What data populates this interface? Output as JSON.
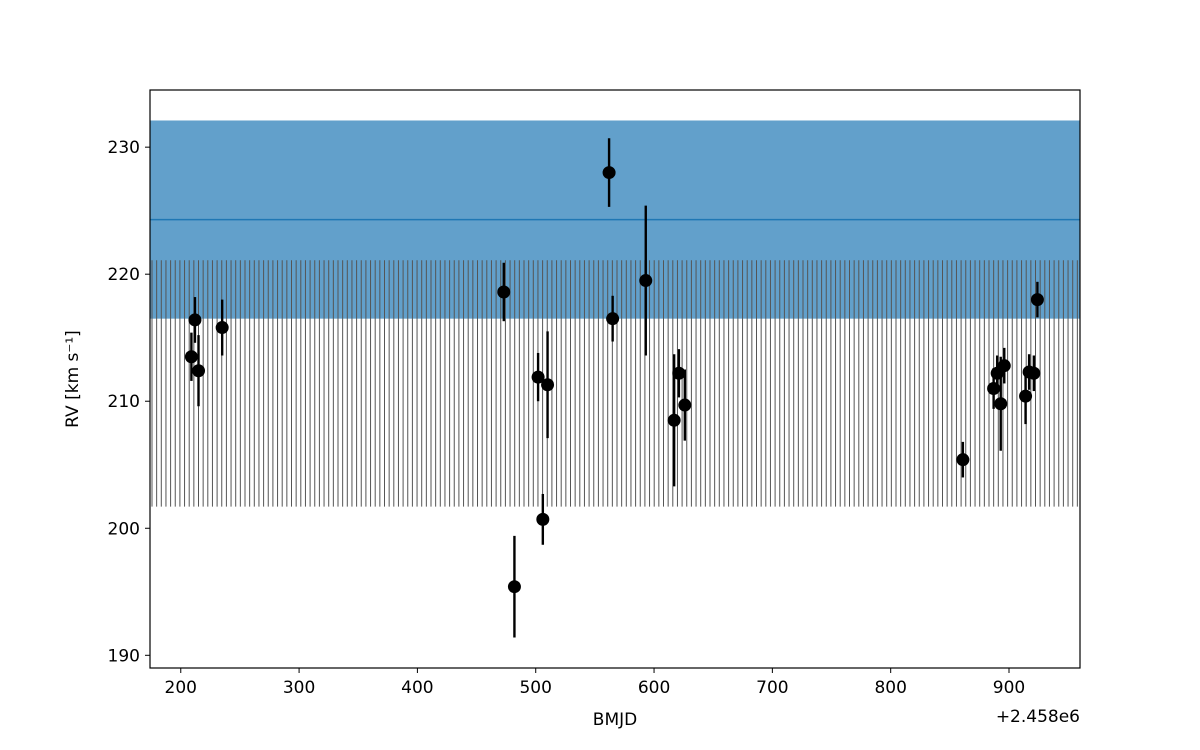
{
  "chart_data": {
    "type": "scatter",
    "xlabel": "BMJD",
    "ylabel": "RV [km s⁻¹]",
    "x_offset_label": "+2.458e6",
    "xlim": [
      174,
      960
    ],
    "ylim": [
      189,
      234.5
    ],
    "xticks": [
      {
        "value": 200,
        "label": "200"
      },
      {
        "value": 300,
        "label": "300"
      },
      {
        "value": 400,
        "label": "400"
      },
      {
        "value": 500,
        "label": "500"
      },
      {
        "value": 600,
        "label": "600"
      },
      {
        "value": 700,
        "label": "700"
      },
      {
        "value": 800,
        "label": "800"
      },
      {
        "value": 900,
        "label": "900"
      }
    ],
    "yticks": [
      {
        "value": 190,
        "label": "190"
      },
      {
        "value": 200,
        "label": "200"
      },
      {
        "value": 210,
        "label": "210"
      },
      {
        "value": 220,
        "label": "220"
      },
      {
        "value": 230,
        "label": "230"
      }
    ],
    "blue_band": {
      "color": "#62a0cb",
      "line_color": "#1f77b4",
      "y_low": 216.5,
      "y_high": 232.1,
      "center": 224.3
    },
    "grey_band": {
      "color": "#555555",
      "y_low": 201.7,
      "y_high": 221.1,
      "line_count": 200
    },
    "points": [
      {
        "x": 209,
        "y": 213.5,
        "err": 1.9
      },
      {
        "x": 212,
        "y": 216.4,
        "err": 1.8
      },
      {
        "x": 215,
        "y": 212.4,
        "err": 2.8
      },
      {
        "x": 235,
        "y": 215.8,
        "err": 2.2
      },
      {
        "x": 473,
        "y": 218.6,
        "err": 2.3
      },
      {
        "x": 482,
        "y": 195.4,
        "err": 4.0
      },
      {
        "x": 502,
        "y": 211.9,
        "err": 1.9
      },
      {
        "x": 506,
        "y": 200.7,
        "err": 2.0
      },
      {
        "x": 510,
        "y": 211.3,
        "err": 4.2
      },
      {
        "x": 562,
        "y": 228.0,
        "err": 2.7
      },
      {
        "x": 565,
        "y": 216.5,
        "err": 1.8
      },
      {
        "x": 593,
        "y": 219.5,
        "err": 5.9
      },
      {
        "x": 617,
        "y": 208.5,
        "err": 5.2
      },
      {
        "x": 621,
        "y": 212.2,
        "err": 1.9
      },
      {
        "x": 626,
        "y": 209.7,
        "err": 2.8
      },
      {
        "x": 861,
        "y": 205.4,
        "err": 1.4
      },
      {
        "x": 887,
        "y": 211.0,
        "err": 1.6
      },
      {
        "x": 890,
        "y": 212.2,
        "err": 1.4
      },
      {
        "x": 893,
        "y": 209.8,
        "err": 3.7
      },
      {
        "x": 896,
        "y": 212.8,
        "err": 1.4
      },
      {
        "x": 914,
        "y": 210.4,
        "err": 2.2
      },
      {
        "x": 917,
        "y": 212.3,
        "err": 1.4
      },
      {
        "x": 921,
        "y": 212.2,
        "err": 1.4
      },
      {
        "x": 924,
        "y": 218.0,
        "err": 1.4
      }
    ]
  }
}
